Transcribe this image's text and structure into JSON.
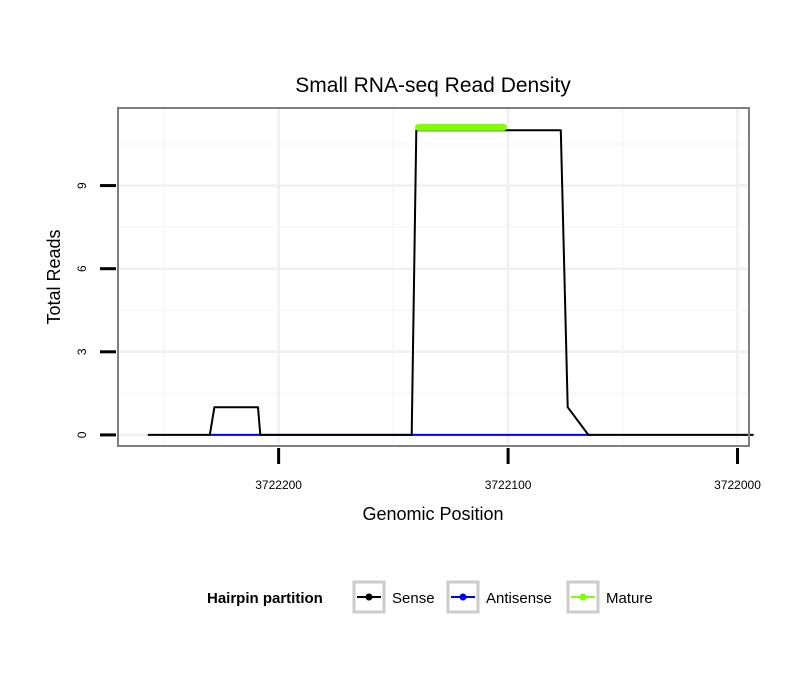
{
  "chart_data": {
    "type": "line",
    "title": "Small RNA-seq Read Density",
    "xlabel": "Genomic Position",
    "ylabel": "Total Reads",
    "x_reversed": true,
    "xlim": [
      3722270,
      3721995
    ],
    "ylim": [
      -0.4,
      11.8
    ],
    "x_ticks": [
      3722200,
      3722100,
      3722000
    ],
    "x_tick_labels": [
      "3722200",
      "3722100",
      "3722000"
    ],
    "y_ticks": [
      0,
      3,
      6,
      9
    ],
    "y_tick_labels": [
      "0",
      "3",
      "6",
      "9"
    ],
    "grid": true,
    "legend": {
      "title": "Hairpin partition",
      "position": "bottom",
      "entries": [
        {
          "name": "Sense",
          "color": "#000000"
        },
        {
          "name": "Antisense",
          "color": "#0000ff"
        },
        {
          "name": "Mature",
          "color": "#7fff00"
        }
      ]
    },
    "series": [
      {
        "name": "Sense",
        "color": "#000000",
        "x": [
          3722257,
          3722230,
          3722228,
          3722209,
          3722208,
          3722142,
          3722140,
          3722103,
          3722102,
          3722101,
          3722100,
          3722097,
          3722092,
          3722087,
          3722082,
          3722077,
          3722074,
          3722065,
          3721993
        ],
        "y": [
          0,
          0,
          1,
          1,
          0,
          0,
          11,
          11,
          11,
          11,
          11,
          11,
          11,
          11,
          11,
          11,
          1,
          0,
          0
        ]
      },
      {
        "name": "Antisense",
        "color": "#0000ff",
        "x": [
          3722230,
          3722208,
          3722142,
          3722063
        ],
        "y": [
          0,
          0,
          0,
          0
        ]
      },
      {
        "name": "Mature",
        "color": "#7fff00",
        "x": [
          3722139,
          3722102
        ],
        "y": [
          11.1,
          11.1
        ]
      }
    ]
  }
}
